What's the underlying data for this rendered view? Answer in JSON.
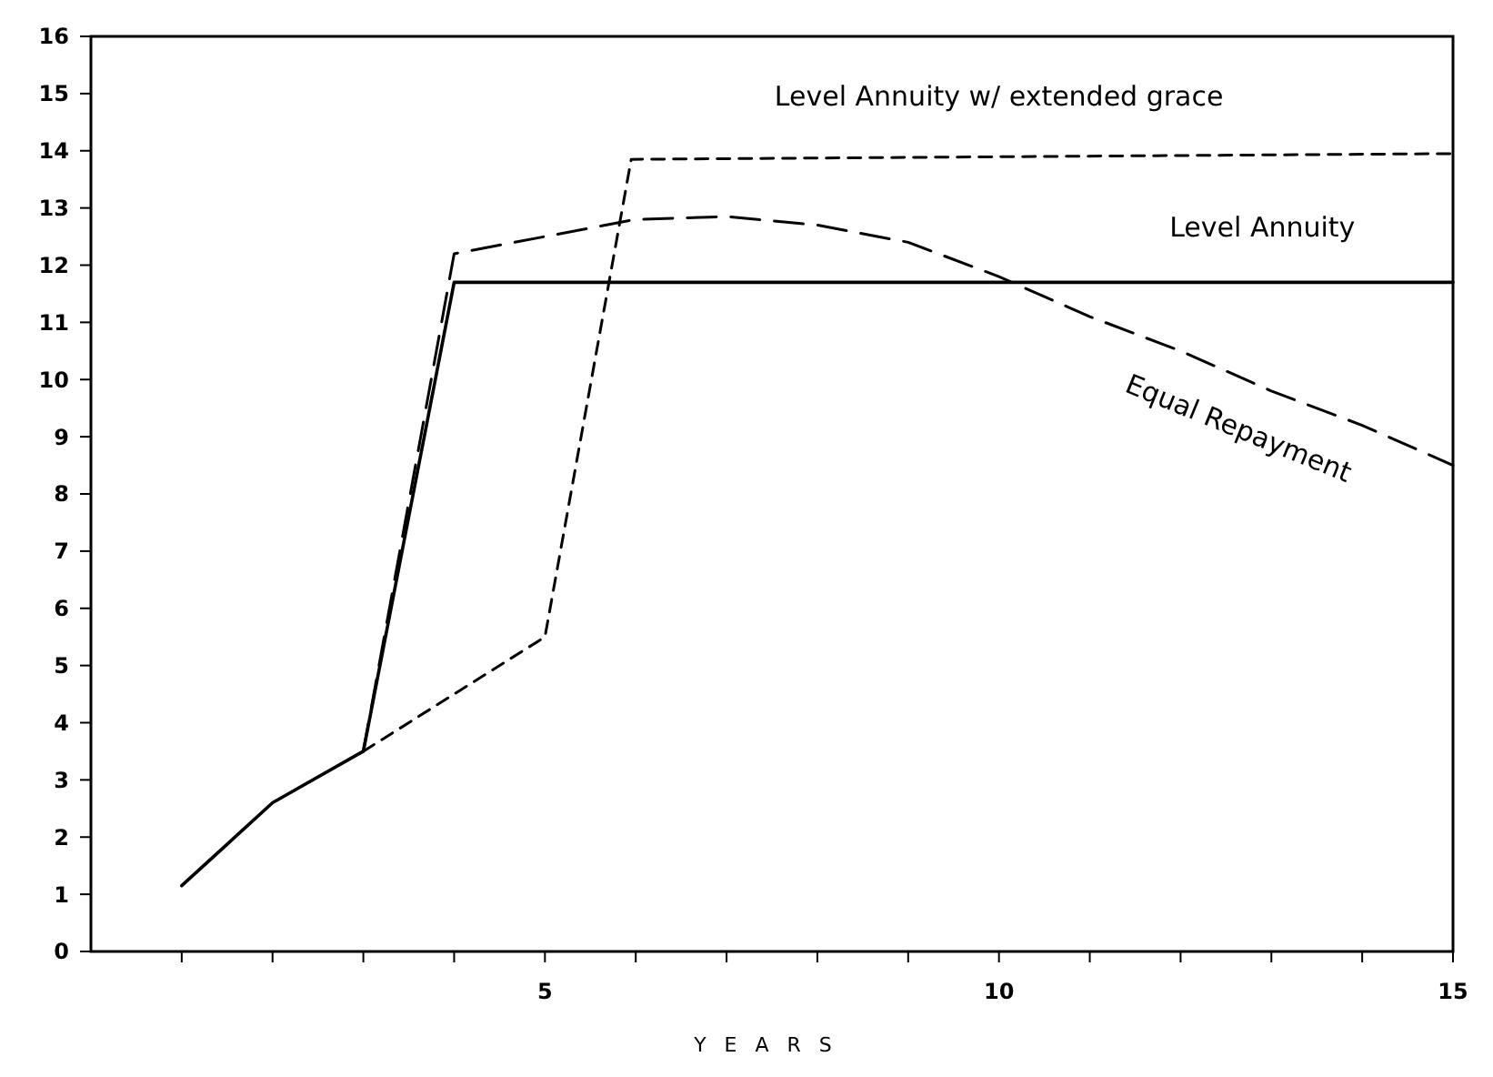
{
  "chart_data": {
    "type": "line",
    "xlabel": "YEARS",
    "xlim": [
      0,
      15
    ],
    "ylim": [
      0,
      16
    ],
    "xticks": [
      {
        "value": 1,
        "label": null
      },
      {
        "value": 2,
        "label": null
      },
      {
        "value": 3,
        "label": null
      },
      {
        "value": 4,
        "label": null
      },
      5,
      {
        "value": 6,
        "label": null
      },
      {
        "value": 7,
        "label": null
      },
      {
        "value": 8,
        "label": null
      },
      {
        "value": 9,
        "label": null
      },
      10,
      {
        "value": 11,
        "label": null
      },
      {
        "value": 12,
        "label": null
      },
      {
        "value": 13,
        "label": null
      },
      {
        "value": 14,
        "label": null
      },
      15
    ],
    "yticks": [
      0,
      1,
      2,
      3,
      4,
      5,
      6,
      7,
      8,
      9,
      10,
      11,
      12,
      13,
      14,
      15,
      16
    ],
    "series": [
      {
        "name": "Level Annuity w/ extended grace",
        "color": "#000000",
        "line_style": "dashed",
        "x": [
          3,
          4,
          5,
          5.95,
          15
        ],
        "values": [
          3.5,
          4.5,
          5.5,
          13.85,
          13.95
        ]
      },
      {
        "name": "Level Annuity",
        "color": "#000000",
        "line_style": "solid",
        "x": [
          1,
          2,
          3,
          4,
          15
        ],
        "values": [
          1.15,
          2.6,
          3.5,
          11.7,
          11.7
        ]
      },
      {
        "name": "Equal Repayment",
        "color": "#000000",
        "line_style": "dashed",
        "x": [
          3,
          4,
          5,
          6,
          7,
          8,
          9,
          10,
          11,
          12,
          13,
          14,
          15
        ],
        "values": [
          3.5,
          12.2,
          12.5,
          12.8,
          12.85,
          12.7,
          12.4,
          11.8,
          11.1,
          10.5,
          9.8,
          9.2,
          8.5
        ]
      }
    ]
  }
}
